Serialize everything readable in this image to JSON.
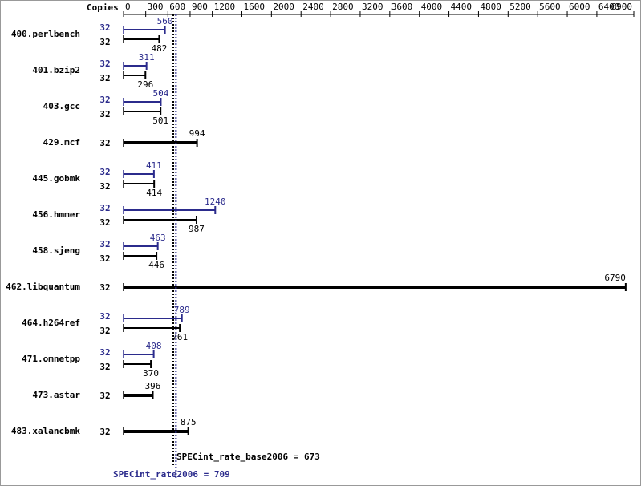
{
  "chart_data": {
    "type": "bar",
    "orientation": "horizontal",
    "copies_label": "Copies",
    "categories": [
      "400.perlbench",
      "401.bzip2",
      "403.gcc",
      "429.mcf",
      "445.gobmk",
      "456.hmmer",
      "458.sjeng",
      "462.libquantum",
      "464.h264ref",
      "471.omnetpp",
      "473.astar",
      "483.xalancbmk"
    ],
    "series": [
      {
        "color": "#2b2b8c",
        "copies": [
          32,
          32,
          32,
          null,
          32,
          32,
          32,
          null,
          32,
          32,
          null,
          null
        ],
        "values": [
          560,
          311,
          504,
          null,
          411,
          1240,
          463,
          null,
          789,
          408,
          null,
          null
        ]
      },
      {
        "color": "#000000",
        "copies": [
          32,
          32,
          32,
          32,
          32,
          32,
          32,
          32,
          32,
          32,
          32,
          32
        ],
        "values": [
          482,
          296,
          501,
          994,
          414,
          987,
          446,
          6790,
          761,
          370,
          396,
          875
        ]
      }
    ],
    "xlim": [
      0,
      6900
    ],
    "xticks": [
      0,
      300,
      600,
      900,
      1200,
      1600,
      2000,
      2400,
      2800,
      3200,
      3600,
      4000,
      4400,
      4800,
      5200,
      5600,
      6000,
      6400,
      6900
    ],
    "reference_lines": [
      {
        "label": "SPECint_rate_base2006 = 673",
        "value": 673,
        "color": "#000000"
      },
      {
        "label": "SPECint_rate2006 = 709",
        "value": 709,
        "color": "#2b2b8c"
      }
    ]
  }
}
